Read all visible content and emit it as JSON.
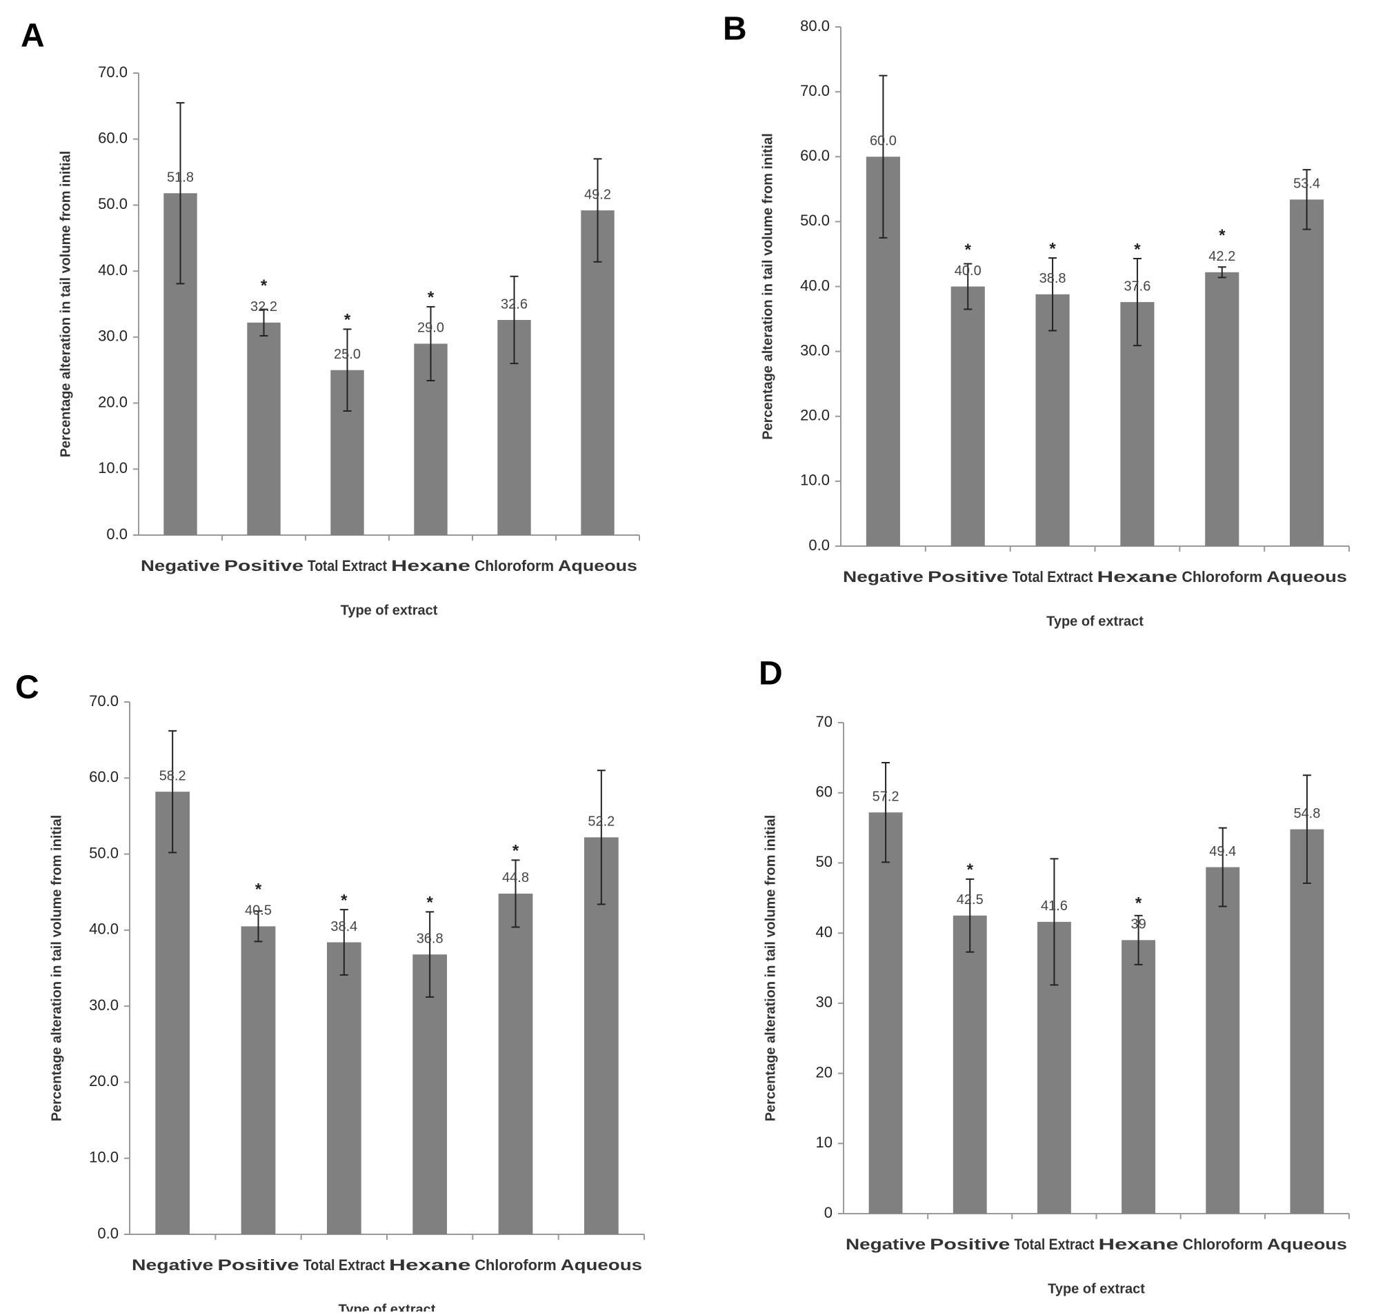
{
  "chart_data": [
    {
      "type": "bar",
      "panel": "A",
      "x_label": "Type of extract",
      "y_label": "Percentage alteration in tail volume from initial",
      "categories": [
        "Negative",
        "Positive",
        "Total Extract",
        "Hexane",
        "Chloroform",
        "Aqueous"
      ],
      "values": [
        51.8,
        32.2,
        25.0,
        29.0,
        32.6,
        49.2
      ],
      "value_labels": [
        "51.8",
        "32.2",
        "25.0",
        "29.0",
        "32.6",
        "49.2"
      ],
      "errors": [
        13.7,
        2.0,
        6.2,
        5.6,
        6.6,
        7.8
      ],
      "annotations": [
        null,
        "*",
        "*",
        "*",
        null,
        null
      ],
      "color": "#808080",
      "ylim": [
        0,
        70
      ],
      "yticks": [
        {
          "value": 0,
          "label": "0.0"
        },
        {
          "value": 10,
          "label": "10.0"
        },
        {
          "value": 20,
          "label": "20.0"
        },
        {
          "value": 30,
          "label": "30.0"
        },
        {
          "value": 40,
          "label": "40.0"
        },
        {
          "value": 50,
          "label": "50.0"
        },
        {
          "value": 60,
          "label": "60.0"
        },
        {
          "value": 70,
          "label": "70.0"
        }
      ]
    },
    {
      "type": "bar",
      "panel": "B",
      "x_label": "Type of extract",
      "y_label": "Percentage alteration in tail volume from initial",
      "categories": [
        "Negative",
        "Positive",
        "Total Extract",
        "Hexane",
        "Chloroform",
        "Aqueous"
      ],
      "values": [
        60.0,
        40.0,
        38.8,
        37.6,
        42.2,
        53.4
      ],
      "value_labels": [
        "60.0",
        "40.0",
        "38.8",
        "37.6",
        "42.2",
        "53.4"
      ],
      "errors": [
        12.5,
        3.5,
        5.6,
        6.7,
        0.8,
        4.6
      ],
      "annotations": [
        null,
        "*",
        "*",
        "*",
        "*",
        null
      ],
      "color": "#808080",
      "ylim": [
        0,
        80
      ],
      "yticks": [
        {
          "value": 0,
          "label": "0.0"
        },
        {
          "value": 10,
          "label": "10.0"
        },
        {
          "value": 20,
          "label": "20.0"
        },
        {
          "value": 30,
          "label": "30.0"
        },
        {
          "value": 40,
          "label": "40.0"
        },
        {
          "value": 50,
          "label": "50.0"
        },
        {
          "value": 60,
          "label": "60.0"
        },
        {
          "value": 70,
          "label": "70.0"
        },
        {
          "value": 80,
          "label": "80.0"
        }
      ]
    },
    {
      "type": "bar",
      "panel": "C",
      "x_label": "Type of extract",
      "y_label": "Percentage alteration in tail volume from initial",
      "categories": [
        "Negative",
        "Positive",
        "Total Extract",
        "Hexane",
        "Chloroform",
        "Aqueous"
      ],
      "values": [
        58.2,
        40.5,
        38.4,
        36.8,
        44.8,
        52.2
      ],
      "value_labels": [
        "58.2",
        "40.5",
        "38.4",
        "36.8",
        "44.8",
        "52.2"
      ],
      "errors": [
        8.0,
        2.0,
        4.3,
        5.6,
        4.4,
        8.8
      ],
      "annotations": [
        null,
        "*",
        "*",
        "*",
        "*",
        null
      ],
      "color": "#808080",
      "ylim": [
        0,
        70
      ],
      "yticks": [
        {
          "value": 0,
          "label": "0.0"
        },
        {
          "value": 10,
          "label": "10.0"
        },
        {
          "value": 20,
          "label": "20.0"
        },
        {
          "value": 30,
          "label": "30.0"
        },
        {
          "value": 40,
          "label": "40.0"
        },
        {
          "value": 50,
          "label": "50.0"
        },
        {
          "value": 60,
          "label": "60.0"
        },
        {
          "value": 70,
          "label": "70.0"
        }
      ]
    },
    {
      "type": "bar",
      "panel": "D",
      "x_label": "Type of extract",
      "y_label": "Percentage alteration in tail volume from initial",
      "categories": [
        "Negative",
        "Positive",
        "Total Extract",
        "Hexane",
        "Chloroform",
        "Aqueous"
      ],
      "values": [
        57.2,
        42.5,
        41.6,
        39,
        49.4,
        54.8
      ],
      "value_labels": [
        "57.2",
        "42.5",
        "41.6",
        "39",
        "49.4",
        "54.8"
      ],
      "errors": [
        7.1,
        5.2,
        9.0,
        3.5,
        5.6,
        7.7
      ],
      "annotations": [
        null,
        "*",
        null,
        "*",
        null,
        null
      ],
      "color": "#808080",
      "ylim": [
        0,
        70
      ],
      "yticks": [
        0,
        10,
        20,
        30,
        40,
        50,
        60,
        70
      ]
    }
  ]
}
